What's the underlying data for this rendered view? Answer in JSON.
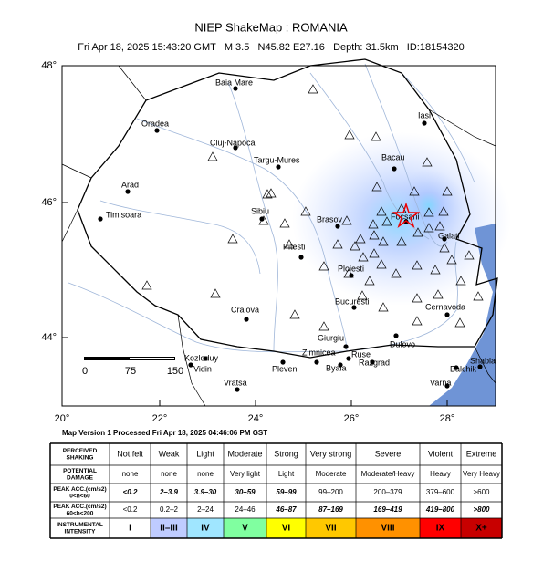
{
  "header": {
    "title": "NIEP ShakeMap : ROMANIA",
    "subtitle": "Fri Apr 18, 2025 15:43:20 GMT   M 3.5   N45.82 E27.16   Depth: 31.5km   ID:18154320"
  },
  "map": {
    "lat_labels": [
      "48°",
      "46°",
      "44°"
    ],
    "lon_labels": [
      "20°",
      "22°",
      "24°",
      "26°",
      "28°"
    ],
    "cities": [
      "Baia Mare",
      "Oradea",
      "Cluj-Napoca",
      "Targu-Mures",
      "Arad",
      "Timisoara",
      "Sibiu",
      "Brasov",
      "Bacau",
      "Iasi",
      "Focsani",
      "Galati",
      "Ploiesti",
      "Pitesti",
      "Craiova",
      "Bucuresti",
      "Giurgiu",
      "Cernavoda",
      "Zimnicea",
      "Ruse",
      "Dulovo",
      "Kozloduy",
      "Vidin",
      "Pleven",
      "Byala",
      "Razgrad",
      "Shabla",
      "Balchik",
      "Varna",
      "Vratsa"
    ],
    "scale_labels": [
      "0",
      "75",
      "150"
    ]
  },
  "footer": "Map Version 1 Processed Fri Apr 18, 2025 04:46:06 PM GST",
  "legend": {
    "rows": [
      {
        "label": [
          "PERCEIVED",
          "SHAKING"
        ],
        "cells": [
          "Not felt",
          "Weak",
          "Light",
          "Moderate",
          "Strong",
          "Very strong",
          "Severe",
          "Violent",
          "Extreme"
        ]
      },
      {
        "label": [
          "POTENTIAL",
          "DAMAGE"
        ],
        "cells": [
          "none",
          "none",
          "none",
          "Very light",
          "Light",
          "Moderate",
          "Moderate/Heavy",
          "Heavy",
          "Very Heavy"
        ]
      },
      {
        "label": [
          "PEAK ACC.(cm/s2)",
          "0<h<60"
        ],
        "cells": [
          "<0.2",
          "2–3.9",
          "3.9–30",
          "30–59",
          "59–99",
          "99–200",
          "200–379",
          "379–600",
          ">600"
        ]
      },
      {
        "label": [
          "PEAK ACC.(cm/s2)",
          "60<h<200"
        ],
        "cells": [
          "<0.2",
          "0.2–2",
          "2–24",
          "24–46",
          "46–87",
          "87–169",
          "169–419",
          "419–800",
          ">800"
        ]
      },
      {
        "label": [
          "INSTRUMENTAL",
          "INTENSITY"
        ],
        "cells": [
          "I",
          "II–III",
          "IV",
          "V",
          "VI",
          "VII",
          "VIII",
          "IX",
          "X+"
        ]
      }
    ],
    "colors": [
      "#ffffff",
      "#bfccff",
      "#a0e6ff",
      "#80ffa0",
      "#ffff00",
      "#ffc800",
      "#ff9100",
      "#ff0000",
      "#c80000"
    ]
  }
}
